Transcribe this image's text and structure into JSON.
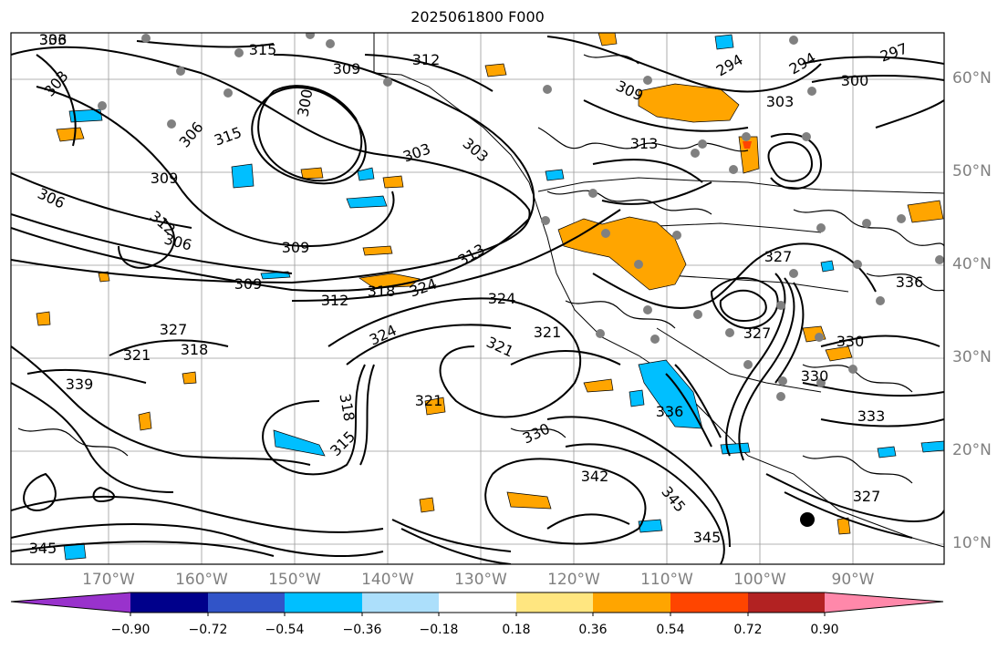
{
  "title": "2025061800 F000",
  "map": {
    "lon_labels": [
      "170°W",
      "160°W",
      "150°W",
      "140°W",
      "130°W",
      "120°W",
      "110°W",
      "100°W",
      "90°W"
    ],
    "lat_labels": [
      "60°N",
      "50°N",
      "40°N",
      "30°N",
      "20°N",
      "10°N"
    ],
    "contour_labels": [
      "306",
      "315",
      "315",
      "309",
      "312",
      "303",
      "300",
      "306",
      "294",
      "294",
      "297",
      "300",
      "309",
      "303",
      "303",
      "303",
      "313",
      "309",
      "306",
      "312",
      "306",
      "309",
      "309",
      "313",
      "312",
      "318",
      "324",
      "324",
      "327",
      "321",
      "321",
      "327",
      "324",
      "318",
      "321",
      "318",
      "315",
      "321",
      "330",
      "342",
      "345",
      "345",
      "336",
      "330",
      "333",
      "336",
      "327",
      "345",
      "339",
      "330",
      "327",
      "333"
    ],
    "contour_label_color": "#000000"
  },
  "colorbar": {
    "tick_labels": [
      "−0.90",
      "−0.72",
      "−0.54",
      "−0.36",
      "−0.18",
      "0.18",
      "0.36",
      "0.54",
      "0.72",
      "0.90"
    ],
    "colors": [
      "#9932cc",
      "#00008b",
      "#3154c8",
      "#00bfff",
      "#acdffb",
      "#ffffff",
      "#ffe680",
      "#ffa500",
      "#ff4500",
      "#b22222",
      "#ff88aa"
    ]
  },
  "colors": {
    "orange": "#ffa500",
    "blue": "#00bfff",
    "red": "#ff4500",
    "station": "#808080"
  }
}
